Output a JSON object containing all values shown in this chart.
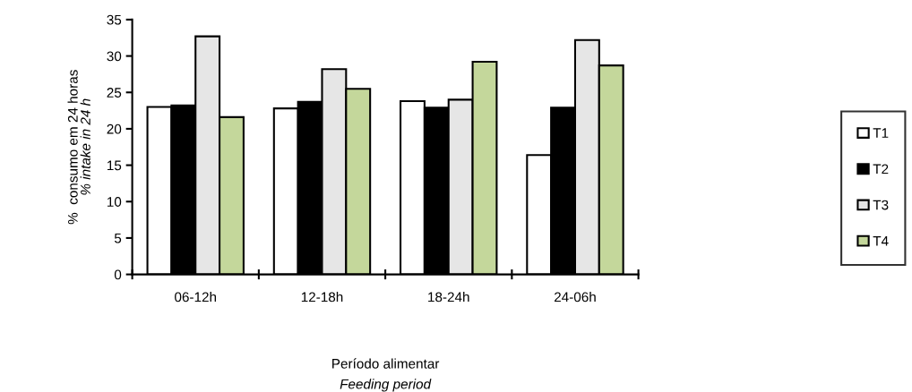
{
  "chart_data": {
    "type": "bar",
    "xlabel": "Período alimentar\nFeeding period",
    "ylabel": "%  consumo em 24 horas\n% intake in 24 h",
    "categories": [
      "06-12h",
      "12-18h",
      "18-24h",
      "24-06h"
    ],
    "series": [
      {
        "name": "T1",
        "color": "#ffffff",
        "values": [
          23.0,
          22.8,
          23.8,
          16.4
        ]
      },
      {
        "name": "T2",
        "color": "#000000",
        "values": [
          23.2,
          23.7,
          22.9,
          22.9
        ]
      },
      {
        "name": "T3",
        "color": "#e6e6e6",
        "values": [
          32.7,
          28.2,
          24.0,
          32.2
        ]
      },
      {
        "name": "T4",
        "color": "#c4d79b",
        "values": [
          21.6,
          25.5,
          29.2,
          28.7
        ]
      }
    ],
    "ylim": [
      0,
      35
    ],
    "yticks": [
      0,
      5,
      10,
      15,
      20,
      25,
      30,
      35
    ],
    "grid": false,
    "legend": "right"
  }
}
